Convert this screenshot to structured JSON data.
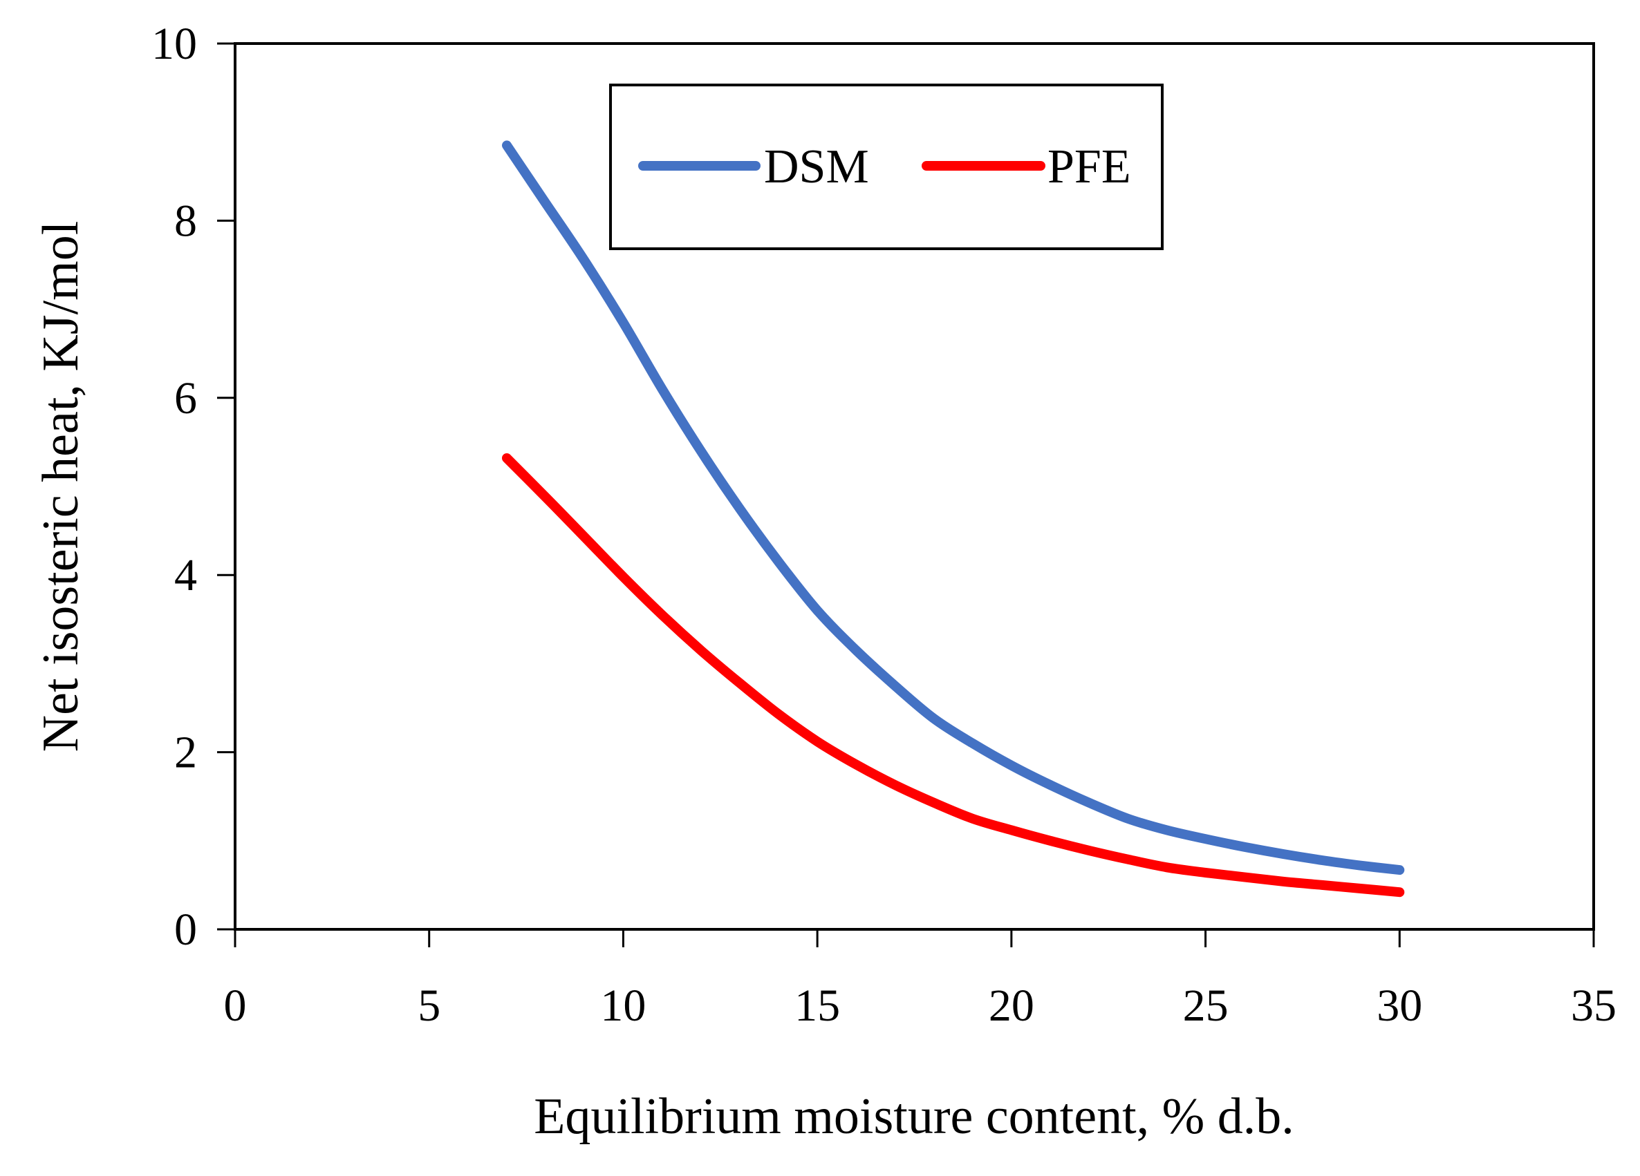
{
  "chart_data": {
    "type": "line",
    "title": "",
    "xlabel": "Equilibrium moisture content, % d.b.",
    "ylabel": "Net isosteric heat, KJ/mol",
    "xlim": [
      0,
      35
    ],
    "ylim": [
      0,
      10
    ],
    "xticks": [
      0,
      5,
      10,
      15,
      20,
      25,
      30,
      35
    ],
    "yticks": [
      0,
      2,
      4,
      6,
      8,
      10
    ],
    "grid": false,
    "legend_position": "top-center",
    "series": [
      {
        "name": "DSM",
        "color": "#4472C4",
        "x": [
          7,
          8,
          9,
          10,
          11,
          12,
          13,
          14,
          15,
          16,
          17,
          18,
          19,
          20,
          21,
          22,
          23,
          24,
          25,
          26,
          27,
          28,
          29,
          30
        ],
        "y": [
          8.85,
          8.2,
          7.55,
          6.85,
          6.1,
          5.4,
          4.75,
          4.15,
          3.6,
          3.15,
          2.75,
          2.38,
          2.1,
          1.85,
          1.63,
          1.43,
          1.25,
          1.12,
          1.02,
          0.93,
          0.85,
          0.78,
          0.72,
          0.67
        ]
      },
      {
        "name": "PFE",
        "color": "#FF0000",
        "x": [
          7,
          8,
          9,
          10,
          11,
          12,
          13,
          14,
          15,
          16,
          17,
          18,
          19,
          20,
          21,
          22,
          23,
          24,
          25,
          26,
          27,
          28,
          29,
          30
        ],
        "y": [
          5.32,
          4.88,
          4.43,
          3.98,
          3.55,
          3.15,
          2.78,
          2.43,
          2.12,
          1.86,
          1.63,
          1.43,
          1.25,
          1.12,
          1.0,
          0.89,
          0.79,
          0.7,
          0.64,
          0.59,
          0.54,
          0.5,
          0.46,
          0.42
        ]
      }
    ]
  }
}
